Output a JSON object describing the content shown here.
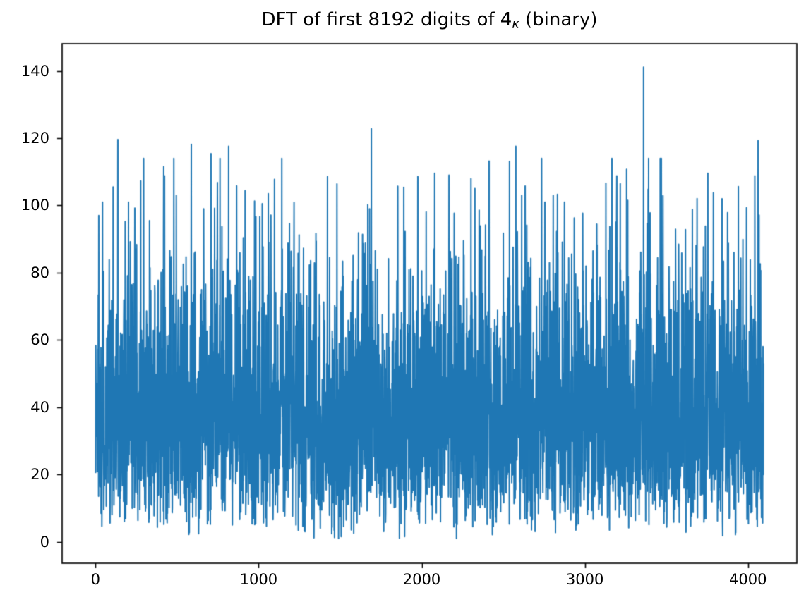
{
  "figure": {
    "background_color": "#ffffff",
    "axes_color": "#000000"
  },
  "chart_data": {
    "type": "line",
    "title": "DFT of first 8192 digits of 4κ (binary)",
    "title_parts": {
      "prefix": "DFT of first 8192 digits of 4",
      "subscript": "κ",
      "suffix": " (binary)"
    },
    "xlabel": "",
    "ylabel": "",
    "legend": null,
    "grid": false,
    "line_color": "#1f77b4",
    "xlim": [
      -204.75,
      4299.75
    ],
    "ylim": [
      -6.36,
      148.09
    ],
    "x_ticks": [
      0,
      1000,
      2000,
      3000,
      4000
    ],
    "y_ticks": [
      0,
      20,
      40,
      60,
      80,
      100,
      120,
      140
    ],
    "n_points": 4096,
    "y_min_observed": 0.7,
    "y_max_observed": 141.1,
    "y_mean_observed": 40,
    "noise_model": {
      "distribution": "rayleigh",
      "sigma": 32,
      "seed": 1337,
      "clamp_min": 1.0,
      "clamp_max": 114
    },
    "notable_peaks": [
      [
        20,
        97.0
      ],
      [
        43,
        101.0
      ],
      [
        108,
        105.5
      ],
      [
        137,
        119.6
      ],
      [
        202,
        101.0
      ],
      [
        418,
        111.5
      ],
      [
        423,
        108.8
      ],
      [
        495,
        103.0
      ],
      [
        587,
        118.2
      ],
      [
        663,
        99.0
      ],
      [
        708,
        115.4
      ],
      [
        816,
        117.6
      ],
      [
        865,
        105.8
      ],
      [
        917,
        104.4
      ],
      [
        1022,
        100.5
      ],
      [
        1422,
        108.6
      ],
      [
        1691,
        122.8
      ],
      [
        1890,
        105.4
      ],
      [
        1976,
        108.6
      ],
      [
        2079,
        109.6
      ],
      [
        2167,
        109.0
      ],
      [
        2413,
        113.2
      ],
      [
        2577,
        117.6
      ],
      [
        2613,
        103.0
      ],
      [
        2755,
        101.0
      ],
      [
        2832,
        103.3
      ],
      [
        2875,
        101.0
      ],
      [
        2987,
        97.7
      ],
      [
        3196,
        108.8
      ],
      [
        3263,
        101.5
      ],
      [
        3360,
        141.1
      ],
      [
        3388,
        104.8
      ],
      [
        3659,
        98.8
      ],
      [
        3754,
        109.6
      ],
      [
        3841,
        102.0
      ],
      [
        3941,
        105.6
      ],
      [
        4042,
        108.8
      ],
      [
        4062,
        119.3
      ]
    ]
  }
}
